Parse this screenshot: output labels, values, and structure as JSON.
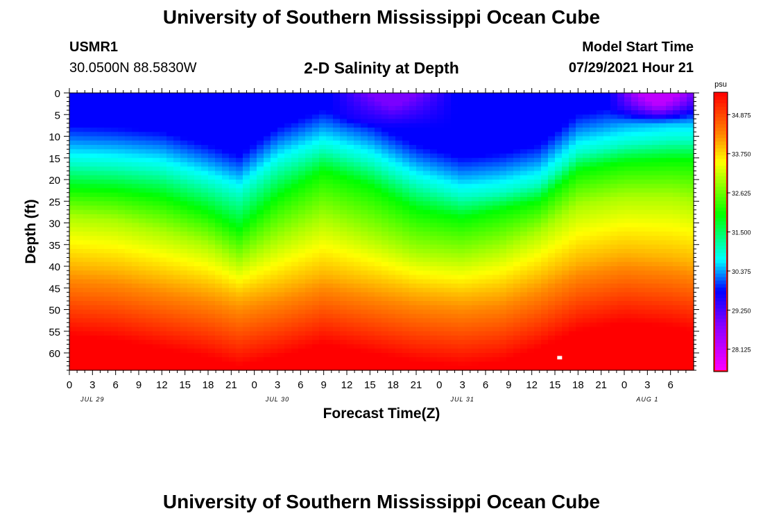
{
  "page_title_top": "University of Southern Mississippi Ocean Cube",
  "page_title_bottom": "University of Southern Mississippi Ocean Cube",
  "station": {
    "id": "USMR1",
    "coords": "30.0500N  88.5830W"
  },
  "model": {
    "label": "Model Start Time",
    "time": "07/29/2021 Hour 21"
  },
  "colors": {
    "magenta": "#ff00ff",
    "purple": "#8800ff",
    "blue": "#0000ff",
    "cyan": "#00ffff",
    "green": "#00ff00",
    "yellow": "#ffff00",
    "orange": "#ff8800",
    "red": "#ff0000",
    "marker": "#ffffff",
    "colorbar_frame": "#ff0000"
  },
  "chart_data": {
    "type": "heatmap",
    "title": "2-D Salinity at Depth",
    "xlabel": "Forecast Time(Z)",
    "ylabel": "Depth (ft)",
    "x_range_hours": [
      0,
      81
    ],
    "x_ticks": [
      "0",
      "3",
      "6",
      "9",
      "12",
      "15",
      "18",
      "21",
      "0",
      "3",
      "6",
      "9",
      "12",
      "15",
      "18",
      "21",
      "0",
      "3",
      "6",
      "9",
      "12",
      "15",
      "18",
      "21",
      "0",
      "3",
      "6"
    ],
    "date_labels": [
      {
        "label": "JUL 29",
        "hour": 3
      },
      {
        "label": "JUL 30",
        "hour": 27
      },
      {
        "label": "JUL 31",
        "hour": 51
      },
      {
        "label": "AUG 1",
        "hour": 75
      }
    ],
    "ylim": [
      0,
      64
    ],
    "y_ticks": [
      0,
      5,
      10,
      15,
      20,
      25,
      30,
      35,
      40,
      45,
      50,
      55,
      60
    ],
    "colorbar": {
      "unit": "psu",
      "range": [
        27.5,
        35.5
      ],
      "ticks": [
        "34.875",
        "33.750",
        "32.625",
        "31.500",
        "30.375",
        "29.250",
        "28.125"
      ]
    },
    "isohaline_depths_ft": {
      "hours": [
        0,
        6,
        12,
        18,
        22,
        27,
        33,
        39,
        45,
        51,
        56,
        61,
        66,
        72,
        78,
        81
      ],
      "s31": [
        16.5,
        17,
        18,
        21,
        23.5,
        17,
        13,
        16,
        21,
        24,
        23,
        21,
        14,
        12,
        11,
        11
      ],
      "s32": [
        22,
        22.5,
        24,
        27.5,
        31.5,
        24,
        18,
        21.5,
        27,
        29,
        27,
        25,
        18,
        16,
        15.5,
        15.5
      ],
      "s33": [
        28.5,
        29.5,
        32,
        35,
        39,
        34,
        29,
        33,
        37,
        38,
        36,
        32,
        26,
        24,
        24,
        25
      ],
      "s34": [
        40,
        41,
        43,
        45,
        47,
        45,
        42,
        44,
        46,
        47,
        46,
        43,
        39,
        37,
        38,
        39
      ]
    },
    "surface_minimum": [
      {
        "hour_start": 36,
        "hour_end": 48,
        "depth_ft": 4,
        "salinity": 28.9
      },
      {
        "hour_start": 72,
        "hour_end": 81,
        "depth_ft": 3,
        "salinity": 28.2
      }
    ]
  }
}
